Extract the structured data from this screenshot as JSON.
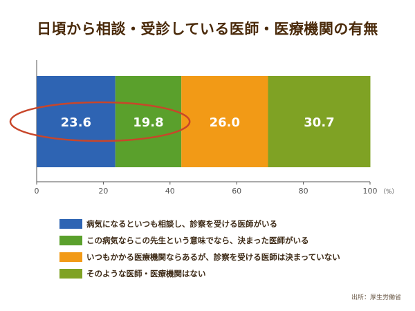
{
  "title": "日頃から相談・受診している医師・医療機関の有無",
  "source": "出所：厚生労働省",
  "chart_data": {
    "type": "bar",
    "orientation": "horizontal-stacked",
    "categories": [
      ""
    ],
    "series": [
      {
        "name": "病気になるといつも相談し、診察を受ける医師がいる",
        "values": [
          23.6
        ],
        "color": "#2e64b3"
      },
      {
        "name": "この病気ならこの先生という意味でなら、決まった医師がいる",
        "values": [
          19.8
        ],
        "color": "#5aa02c"
      },
      {
        "name": "いつもかかる医療機関ならあるが、診察を受ける医師は決まっていない",
        "values": [
          26.0
        ],
        "color": "#f29a16"
      },
      {
        "name": "そのような医師・医療機関はない",
        "values": [
          30.7
        ],
        "color": "#7fa224"
      }
    ],
    "data_labels": [
      "23.6",
      "19.8",
      "26.0",
      "30.7"
    ],
    "xlim": [
      0,
      100
    ],
    "x_ticks": [
      "0",
      "20",
      "40",
      "60",
      "80",
      "100"
    ],
    "x_unit": "（%）",
    "highlight_color": "#c8462a",
    "grid": false,
    "legend_position": "bottom"
  }
}
